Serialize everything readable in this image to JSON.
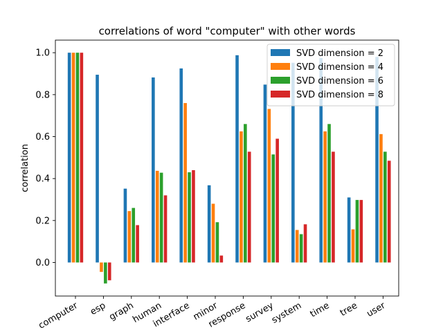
{
  "chart_data": {
    "type": "bar",
    "title": "correlations of word \"computer\" with other words",
    "xlabel": "",
    "ylabel": "correlation",
    "ylim": [
      -0.16,
      1.06
    ],
    "yticks": [
      0.0,
      0.2,
      0.4,
      0.6,
      0.8,
      1.0
    ],
    "ytick_labels": [
      "0.0",
      "0.2",
      "0.4",
      "0.6",
      "0.8",
      "1.0"
    ],
    "grid": false,
    "legend_position": "top-right",
    "categories": [
      "computer",
      "esp",
      "graph",
      "human",
      "interface",
      "minor",
      "response",
      "survey",
      "system",
      "time",
      "tree",
      "user"
    ],
    "series": [
      {
        "name": "SVD dimension = 2",
        "color": "#1f77b4",
        "values": [
          1.0,
          0.895,
          0.352,
          0.882,
          0.925,
          0.368,
          0.988,
          0.848,
          0.952,
          0.975,
          0.31,
          0.98
        ]
      },
      {
        "name": "SVD dimension = 4",
        "color": "#ff7f0e",
        "values": [
          1.0,
          -0.045,
          0.245,
          0.437,
          0.76,
          0.28,
          0.625,
          0.732,
          0.155,
          0.625,
          0.158,
          0.612
        ]
      },
      {
        "name": "SVD dimension = 6",
        "color": "#2ca02c",
        "values": [
          1.0,
          -0.1,
          0.26,
          0.428,
          0.43,
          0.192,
          0.66,
          0.515,
          0.135,
          0.66,
          0.298,
          0.528
        ]
      },
      {
        "name": "SVD dimension = 8",
        "color": "#d62728",
        "values": [
          1.0,
          -0.085,
          0.178,
          0.32,
          0.44,
          0.033,
          0.528,
          0.59,
          0.182,
          0.528,
          0.298,
          0.485
        ]
      }
    ]
  }
}
